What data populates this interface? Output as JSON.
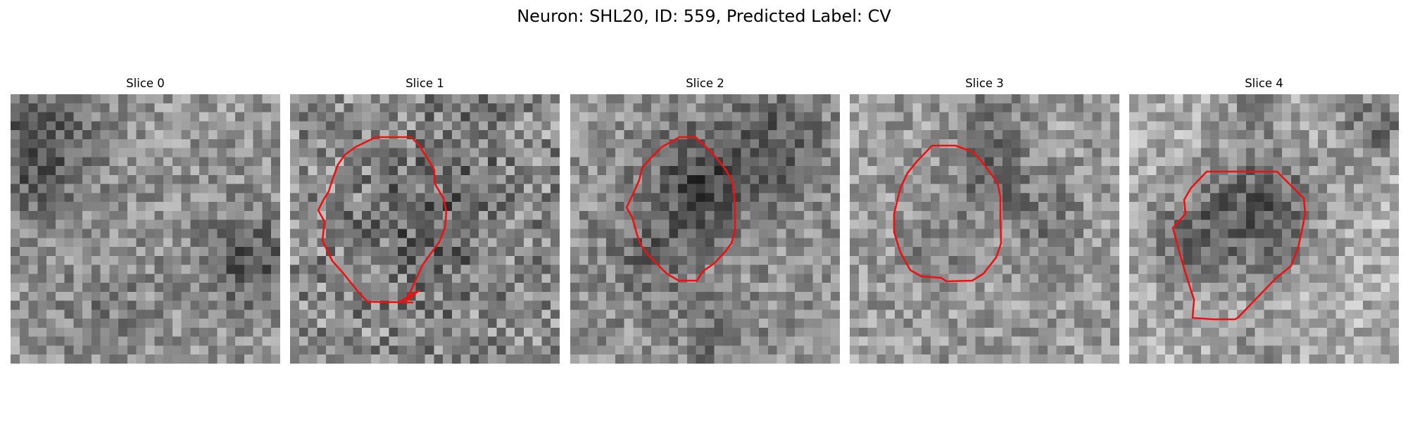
{
  "figure": {
    "title": "Neuron: SHL20, ID: 559, Predicted Label: CV"
  },
  "panels": [
    {
      "title": "Slice 0",
      "has_contour": false
    },
    {
      "title": "Slice 1",
      "has_contour": true
    },
    {
      "title": "Slice 2",
      "has_contour": true
    },
    {
      "title": "Slice 3",
      "has_contour": true
    },
    {
      "title": "Slice 4",
      "has_contour": true
    }
  ],
  "colors": {
    "contour": "#ee1111",
    "background": "#ffffff"
  }
}
